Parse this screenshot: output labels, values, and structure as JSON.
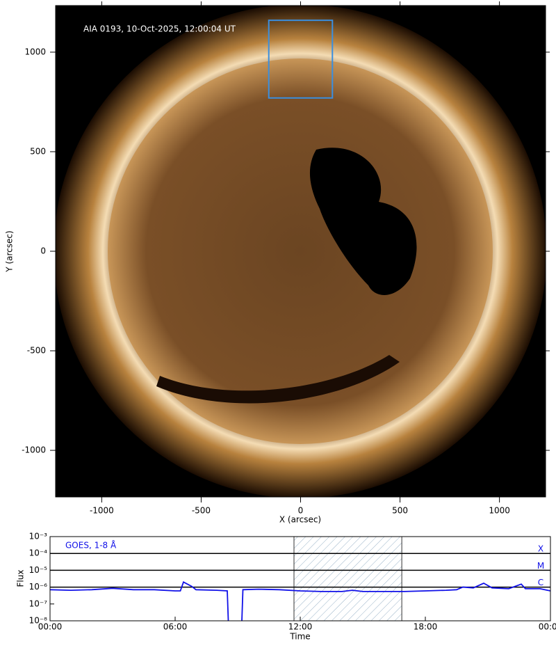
{
  "chart_data": [
    {
      "type": "image",
      "annotation": "AIA 0193, 10-Oct-2025, 12:00:04 UT",
      "x_label": "X (arcsec)",
      "y_label": "Y (arcsec)",
      "xlim": [
        -1232,
        1232
      ],
      "ylim": [
        -1234,
        1234
      ],
      "xticks": [
        -1000,
        -500,
        0,
        500,
        1000
      ],
      "yticks": [
        -1000,
        -500,
        0,
        500,
        1000
      ],
      "box": {
        "x": [
          -160,
          160
        ],
        "y": [
          770,
          1160
        ],
        "color": "#3a8fe0"
      }
    },
    {
      "type": "line",
      "x_label": "Time",
      "y_label": "Flux",
      "log_y": true,
      "xlim": [
        0,
        24
      ],
      "ylim": [
        1e-08,
        0.001
      ],
      "xticks": [
        {
          "value": 0,
          "label": "00:00"
        },
        {
          "value": 6,
          "label": "06:00"
        },
        {
          "value": 12,
          "label": "12:00"
        },
        {
          "value": 18,
          "label": "18:00"
        },
        {
          "value": 24,
          "label": "00:00"
        }
      ],
      "yticks": [
        {
          "value": 1e-08,
          "label": "10⁻⁸"
        },
        {
          "value": 1e-07,
          "label": "10⁻⁷"
        },
        {
          "value": 1e-06,
          "label": "10⁻⁶"
        },
        {
          "value": 1e-05,
          "label": "10⁻⁵"
        },
        {
          "value": 0.0001,
          "label": "10⁻⁴"
        },
        {
          "value": 0.001,
          "label": "10⁻³"
        }
      ],
      "flare_levels": [
        {
          "value": 0.0001,
          "label": "X"
        },
        {
          "value": 1e-05,
          "label": "M"
        },
        {
          "value": 1e-06,
          "label": "C"
        }
      ],
      "highlight_x": [
        11.7,
        16.87
      ],
      "x": [
        0,
        1,
        2,
        3,
        4,
        5,
        6,
        6.25,
        6.4,
        6.8,
        7,
        8,
        8.5,
        8.55,
        8.9,
        9.2,
        9.25,
        10,
        11,
        12,
        13,
        14,
        14.5,
        15,
        16,
        17,
        18,
        19,
        19.5,
        19.8,
        20.3,
        20.8,
        21.2,
        22,
        22.6,
        22.8,
        23.5,
        24
      ],
      "series": [
        {
          "name": "GOES, 1-8 Å",
          "color": "#1010e8",
          "values": [
            7e-07,
            6.5e-07,
            7e-07,
            8.5e-07,
            7e-07,
            7e-07,
            6e-07,
            6e-07,
            2e-06,
            1.1e-06,
            7e-07,
            6.5e-07,
            6e-07,
            1e-08,
            null,
            1e-08,
            7e-07,
            7.5e-07,
            7e-07,
            6e-07,
            5.5e-07,
            5.5e-07,
            6.5e-07,
            5.5e-07,
            5.5e-07,
            5.5e-07,
            6e-07,
            6.5e-07,
            7e-07,
            1e-06,
            9e-07,
            1.7e-06,
            9e-07,
            8e-07,
            1.5e-06,
            8e-07,
            8e-07,
            6e-07
          ]
        }
      ]
    }
  ]
}
